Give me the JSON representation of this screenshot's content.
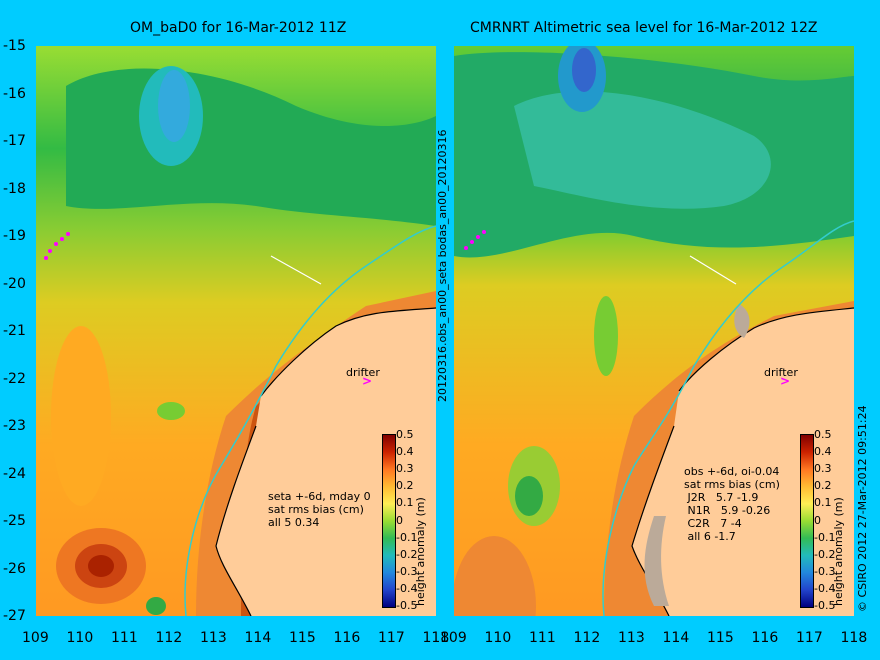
{
  "panels": [
    {
      "id": "left",
      "title": "OM_baD0 for 16-Mar-2012 11Z",
      "annotation": "seta +-6d, mday 0\nsat rms bias (cm)\nall 5 0.34",
      "drifter_label": "drifter"
    },
    {
      "id": "right",
      "title": "CMRNRT Altimetric sea level  for 16-Mar-2012 12Z",
      "annotation": "obs +-6d, oi-0.04\nsat rms bias (cm)\n J2R   5.7 -1.9\n N1R   5.9 -0.26\n C2R   7 -4\n all 6 -1.7",
      "drifter_label": "drifter"
    }
  ],
  "y_ticks": [
    "-15",
    "-16",
    "-17",
    "-18",
    "-19",
    "-20",
    "-21",
    "-22",
    "-23",
    "-24",
    "-25",
    "-26",
    "-27"
  ],
  "x_ticks": [
    "109",
    "110",
    "111",
    "112",
    "113",
    "114",
    "115",
    "116",
    "117",
    "118"
  ],
  "colorbar": {
    "ticks": [
      "0.5",
      "0.4",
      "0.3",
      "0.2",
      "0.1",
      "0",
      "-0.1",
      "-0.2",
      "-0.3",
      "-0.4",
      "-0.5"
    ],
    "label": "height anomaly (m)"
  },
  "side_labels": {
    "middle": "20120316.obs_an00_seta      bodas_an00_20120316",
    "right": "© CSIRO 2012   27-Mar-2012 09:51:24"
  },
  "colors": {
    "background": "#00ccff",
    "land": "#ffcc99",
    "coast_current": "#33cccc",
    "drifter": "#ff00ff",
    "colormap_high": "#800000",
    "colormap_low": "#000080"
  }
}
